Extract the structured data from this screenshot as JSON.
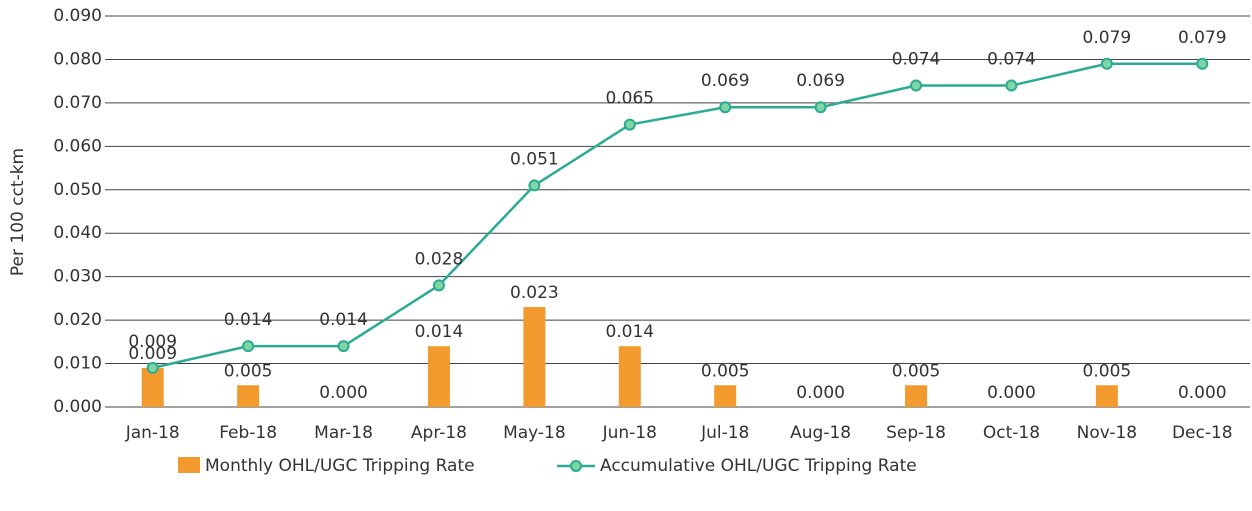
{
  "chart_data": {
    "type": "bar-line",
    "y_axis_label": "Per 100 cct-km",
    "categories": [
      "Jan-18",
      "Feb-18",
      "Mar-18",
      "Apr-18",
      "May-18",
      "Jun-18",
      "Jul-18",
      "Aug-18",
      "Sep-18",
      "Oct-18",
      "Nov-18",
      "Dec-18"
    ],
    "series": [
      {
        "name": "Monthly OHL/UGC Tripping Rate",
        "type": "bar",
        "color": "#f39a2e",
        "values": [
          0.009,
          0.005,
          0,
          0.014,
          0.023,
          0.014,
          0.005,
          0,
          0.005,
          0,
          0.005,
          0
        ],
        "value_labels": [
          "0.009",
          "0.005",
          "0.000",
          "0.014",
          "0.023",
          "0.014",
          "0.005",
          "0.000",
          "0.005",
          "0.000",
          "0.005",
          "0.000"
        ]
      },
      {
        "name": "Accumulative OHL/UGC Tripping Rate",
        "type": "line",
        "color": "#2bab96",
        "values": [
          0.009,
          0.014,
          0.014,
          0.028,
          0.051,
          0.065,
          0.069,
          0.069,
          0.074,
          0.074,
          0.079,
          0.079
        ],
        "value_labels": [
          "0.009",
          "0.014",
          "0.014",
          "0.028",
          "0.051",
          "0.065",
          "0.069",
          "0.069",
          "0.074",
          "0.074",
          "0.079",
          "0.079"
        ]
      }
    ],
    "ylim": [
      0,
      0.09
    ],
    "yticks": [
      {
        "value": 0,
        "label": "0.000"
      },
      {
        "value": 0.01,
        "label": "0.010"
      },
      {
        "value": 0.02,
        "label": "0.020"
      },
      {
        "value": 0.03,
        "label": "0.030"
      },
      {
        "value": 0.04,
        "label": "0.040"
      },
      {
        "value": 0.05,
        "label": "0.050"
      },
      {
        "value": 0.06,
        "label": "0.060"
      },
      {
        "value": 0.07,
        "label": "0.070"
      },
      {
        "value": 0.08,
        "label": "0.080"
      },
      {
        "value": 0.09,
        "label": "0.090"
      }
    ],
    "grid": true
  }
}
